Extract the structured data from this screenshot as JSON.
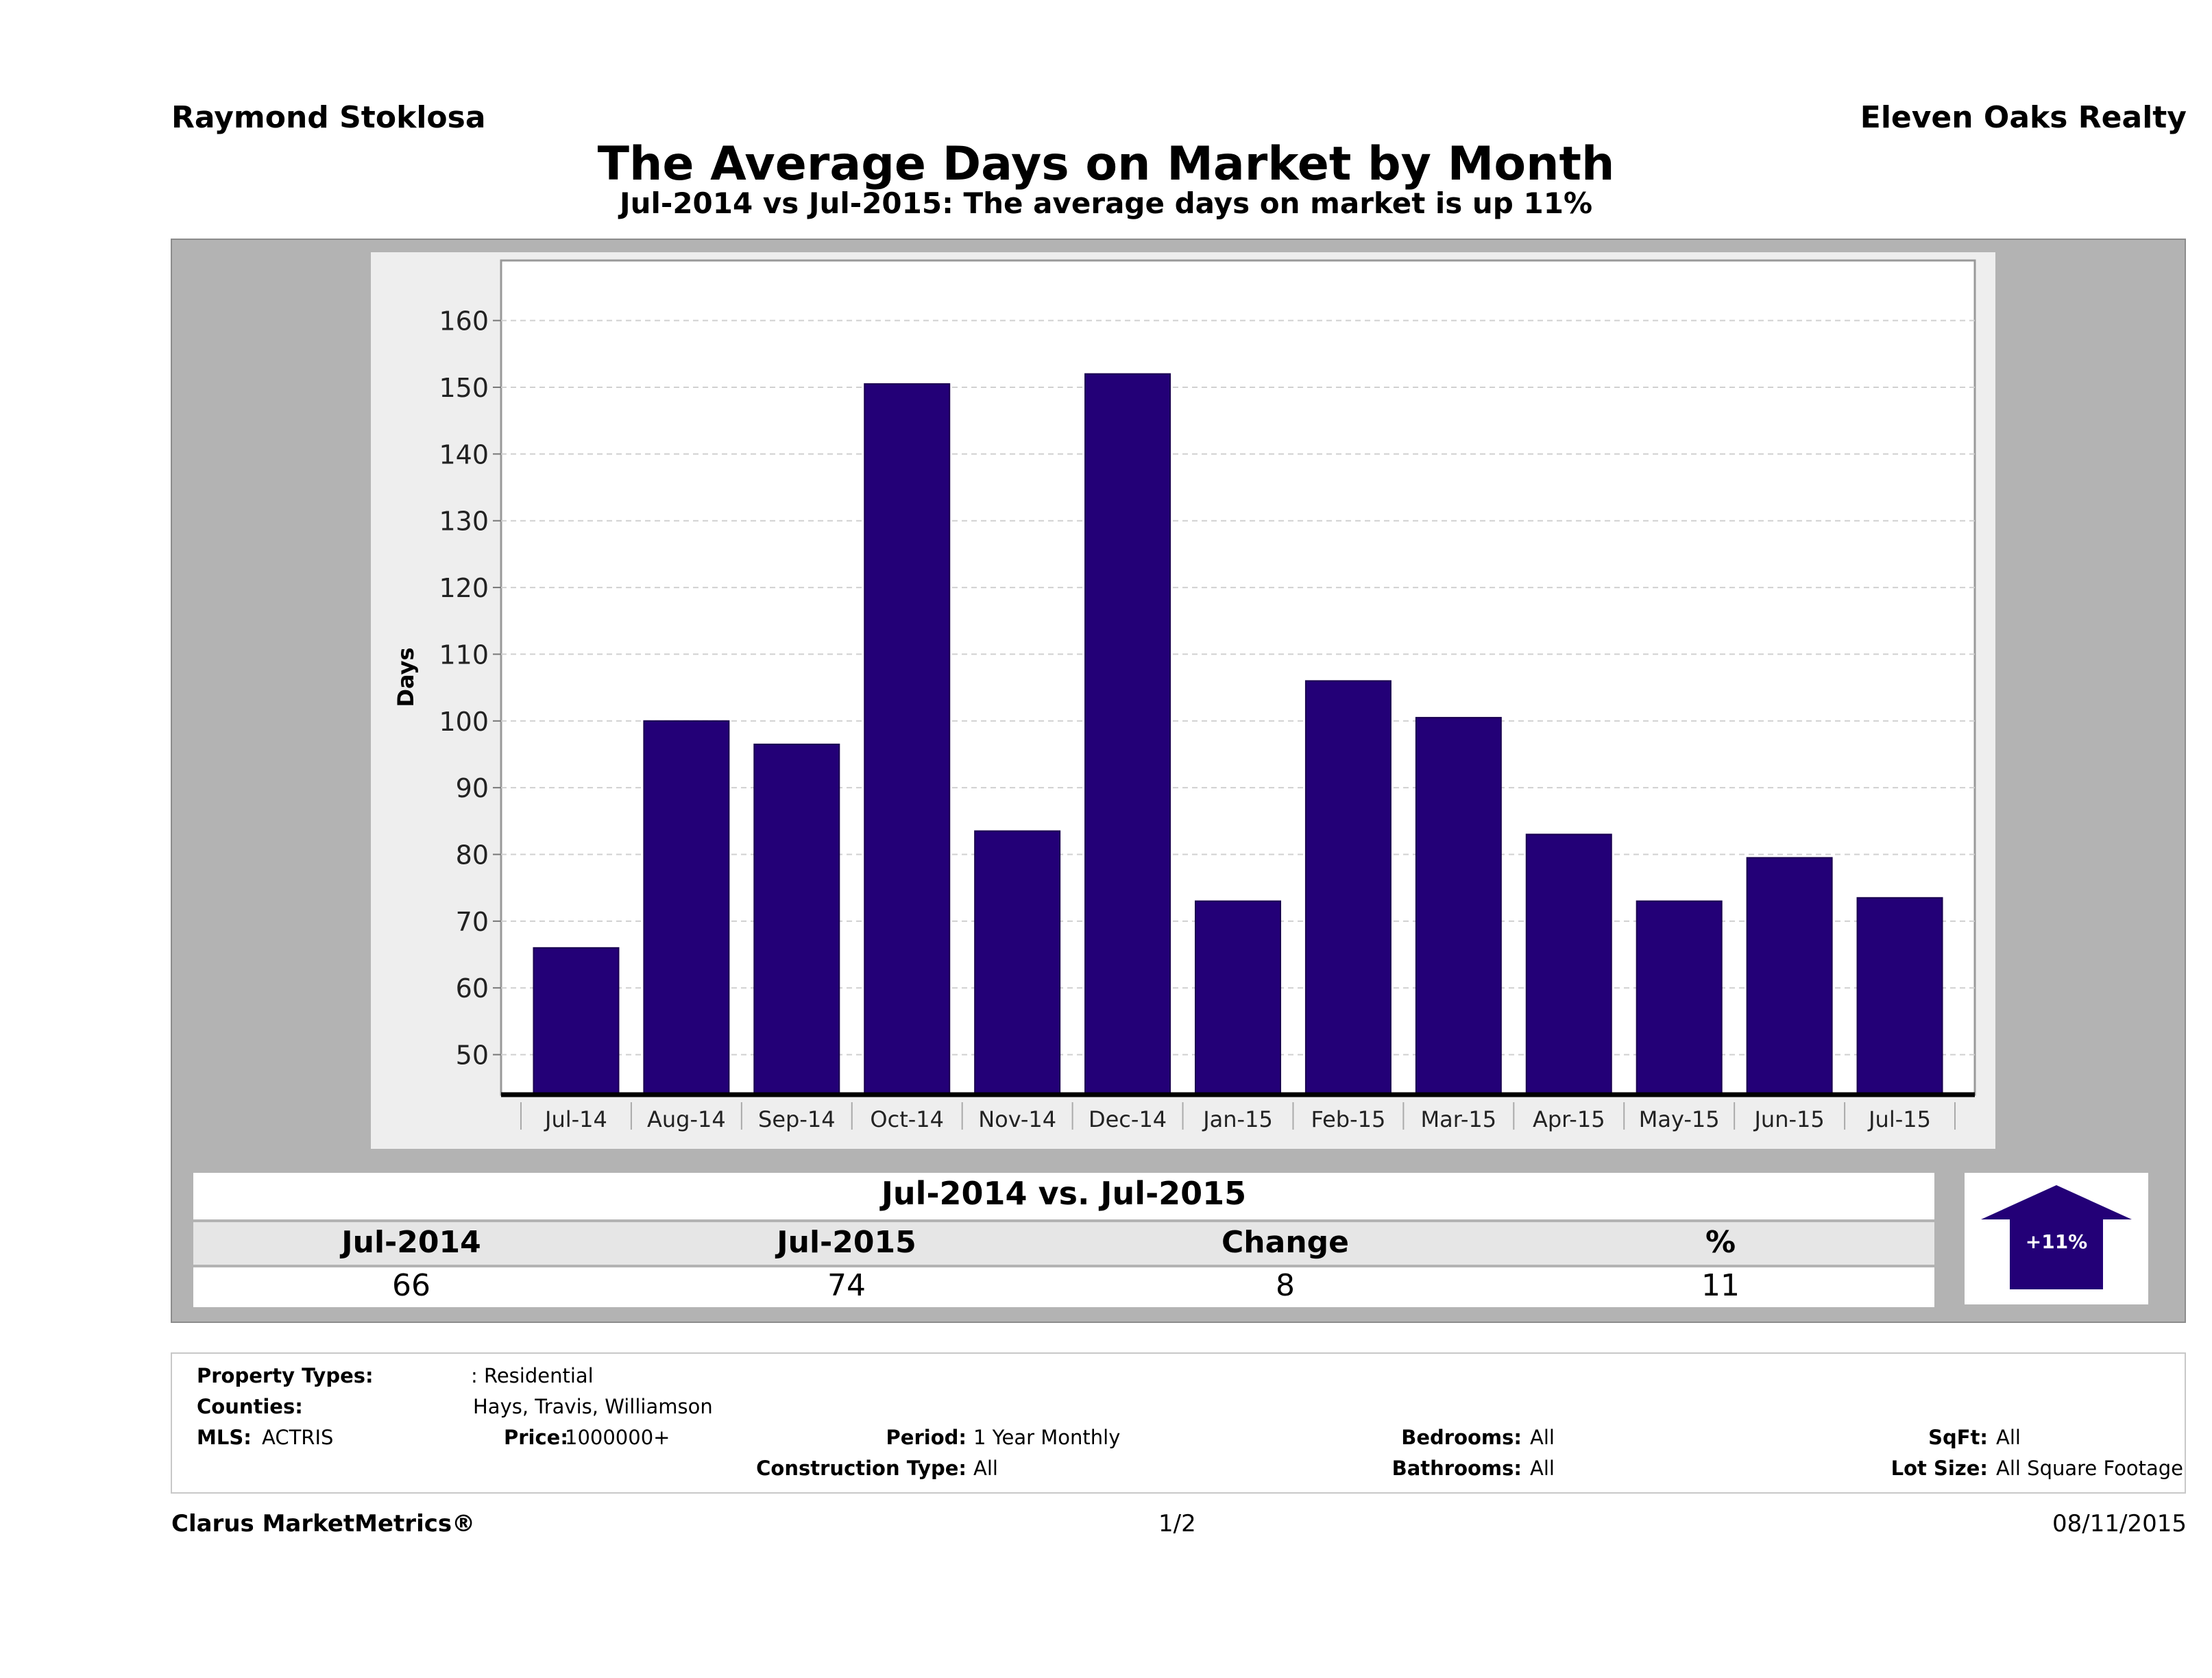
{
  "header": {
    "agent": "Raymond Stoklosa",
    "company": "Eleven Oaks Realty",
    "title": "The Average Days on Market by Month",
    "subtitle": "Jul-2014 vs Jul-2015: The average days on market is up 11%"
  },
  "chart_data": {
    "type": "bar",
    "categories": [
      "Jul-14",
      "Aug-14",
      "Sep-14",
      "Oct-14",
      "Nov-14",
      "Dec-14",
      "Jan-15",
      "Feb-15",
      "Mar-15",
      "Apr-15",
      "May-15",
      "Jun-15",
      "Jul-15"
    ],
    "values": [
      66,
      100,
      96.5,
      150.5,
      83.5,
      152,
      73,
      106,
      100.5,
      83,
      73,
      79.5,
      73.5
    ],
    "ylabel": "Days",
    "xlabel": "",
    "yticks": [
      50,
      60,
      70,
      80,
      90,
      100,
      110,
      120,
      130,
      140,
      150,
      160
    ],
    "ylim": [
      44,
      169
    ],
    "grid": true,
    "bar_color": "#230077"
  },
  "summary": {
    "title": "Jul-2014 vs. Jul-2015",
    "headers": [
      "Jul-2014",
      "Jul-2015",
      "Change",
      "%"
    ],
    "values": [
      "66",
      "74",
      "8",
      "11"
    ],
    "badge": "+11%",
    "badge_color": "#230077"
  },
  "criteria": {
    "property_types_label": "Property Types:",
    "property_types_value": ": Residential",
    "counties_label": "Counties:",
    "counties_value": "Hays, Travis, Williamson",
    "mls_label": "MLS:",
    "mls_value": "ACTRIS",
    "price_label": "Price:",
    "price_value": "1000000+",
    "period_label": "Period:",
    "period_value": "1 Year Monthly",
    "construction_label": "Construction Type:",
    "construction_value": "All",
    "bedrooms_label": "Bedrooms:",
    "bedrooms_value": "All",
    "bathrooms_label": "Bathrooms:",
    "bathrooms_value": "All",
    "sqft_label": "SqFt:",
    "sqft_value": "All",
    "lotsize_label": "Lot Size:",
    "lotsize_value": "All Square Footage"
  },
  "footer": {
    "brand": "Clarus MarketMetrics®",
    "page": "1/2",
    "date": "08/11/2015"
  }
}
